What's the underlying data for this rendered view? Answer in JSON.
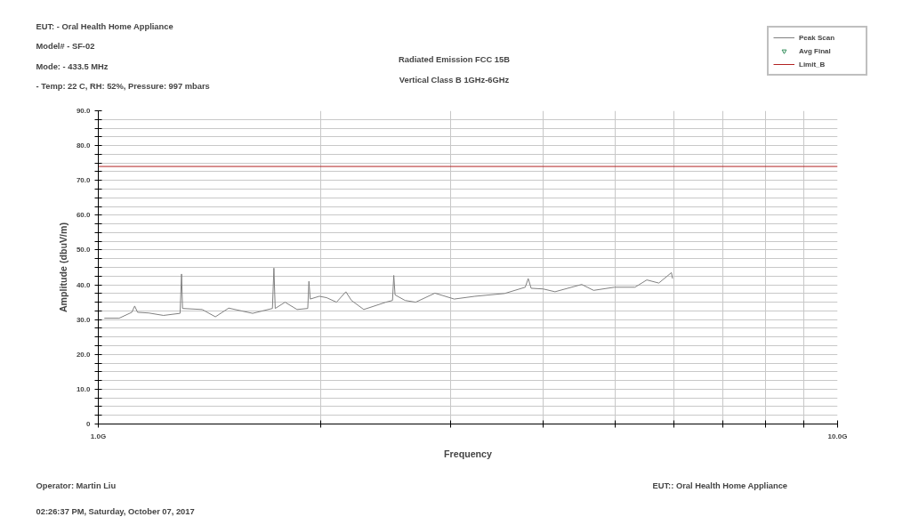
{
  "chart_data": {
    "type": "line",
    "title": "Radiated Emission FCC 15B",
    "subtitle": "Vertical Class B 1GHz-6GHz",
    "xlabel": "Frequency",
    "ylabel": "Amplitude (dbuV/m)",
    "annotations": [
      "EUT: - Oral Health Home Appliance",
      "Model# - SF-02",
      "Mode: - 433.5 MHz",
      " - Temp: 22 C, RH: 52%, Pressure: 997 mbars",
      "Operator: Martin Liu",
      "02:26:37 PM, Saturday, October 07, 2017",
      "EUT:: Oral Health Home Appliance"
    ],
    "log": "x",
    "grid": true,
    "legend": "top right",
    "xlim": [
      1,
      10
    ],
    "xticks": [
      {
        "value": 1,
        "label": "1.0G"
      },
      {
        "value": 2,
        "label": null
      },
      {
        "value": 3,
        "label": null
      },
      {
        "value": 4,
        "label": null
      },
      {
        "value": 5,
        "label": null
      },
      {
        "value": 6,
        "label": null
      },
      {
        "value": 7,
        "label": null
      },
      {
        "value": 8,
        "label": null
      },
      {
        "value": 9,
        "label": null
      },
      {
        "value": 10,
        "label": "10.0G"
      }
    ],
    "ylim": [
      0,
      90
    ],
    "yticks": [
      0,
      {
        "value": 2.5,
        "label": null
      },
      {
        "value": 5,
        "label": null
      },
      {
        "value": 7.5,
        "label": null
      },
      {
        "value": 10,
        "label": "10.0"
      },
      {
        "value": 12.5,
        "label": null
      },
      {
        "value": 15,
        "label": null
      },
      {
        "value": 17.5,
        "label": null
      },
      {
        "value": 20,
        "label": "20.0"
      },
      {
        "value": 22.5,
        "label": null
      },
      {
        "value": 25,
        "label": null
      },
      {
        "value": 27.5,
        "label": null
      },
      {
        "value": 30,
        "label": "30.0"
      },
      {
        "value": 32.5,
        "label": null
      },
      {
        "value": 35,
        "label": null
      },
      {
        "value": 37.5,
        "label": null
      },
      {
        "value": 40,
        "label": "40.0"
      },
      {
        "value": 42.5,
        "label": null
      },
      {
        "value": 45,
        "label": null
      },
      {
        "value": 47.5,
        "label": null
      },
      {
        "value": 50,
        "label": "50.0"
      },
      {
        "value": 52.5,
        "label": null
      },
      {
        "value": 55,
        "label": null
      },
      {
        "value": 57.5,
        "label": null
      },
      {
        "value": 60,
        "label": "60.0"
      },
      {
        "value": 62.5,
        "label": null
      },
      {
        "value": 65,
        "label": null
      },
      {
        "value": 67.5,
        "label": null
      },
      {
        "value": 70,
        "label": "70.0"
      },
      {
        "value": 72.5,
        "label": null
      },
      {
        "value": 75,
        "label": null
      },
      {
        "value": 77.5,
        "label": null
      },
      {
        "value": 80,
        "label": "80.0"
      },
      {
        "value": 82.5,
        "label": null
      },
      {
        "value": 85,
        "label": null
      },
      {
        "value": 87.5,
        "label": null
      },
      {
        "value": 90,
        "label": "90.0"
      }
    ],
    "series": [
      {
        "name": "Peak Scan",
        "color": "#808080",
        "x": [
          1.019,
          1.067,
          1.11,
          1.12,
          1.13,
          1.17,
          1.225,
          1.29,
          1.296,
          1.3,
          1.382,
          1.44,
          1.501,
          1.617,
          1.72,
          1.728,
          1.735,
          1.789,
          1.857,
          1.92,
          1.927,
          1.935,
          1.99,
          2.036,
          2.1,
          2.162,
          2.2,
          2.286,
          2.449,
          2.5,
          2.51,
          2.52,
          2.6,
          2.687,
          2.853,
          3.03,
          3.232,
          3.544,
          3.78,
          3.815,
          3.85,
          3.998,
          4.147,
          4.507,
          4.677,
          4.99,
          5.32,
          5.52,
          5.73,
          5.96,
          5.98
        ],
        "values": [
          30.4,
          30.4,
          32.1,
          33.9,
          32.1,
          31.9,
          31.2,
          31.8,
          43.1,
          33.2,
          32.9,
          30.8,
          33.3,
          31.8,
          33.2,
          44.8,
          33.2,
          35.0,
          32.9,
          33.2,
          41.0,
          35.9,
          36.7,
          36.3,
          35.0,
          38.0,
          35.5,
          32.9,
          35.0,
          35.5,
          42.7,
          37.1,
          35.5,
          35.0,
          37.6,
          35.9,
          36.7,
          37.5,
          39.3,
          41.8,
          39.0,
          38.8,
          38.0,
          40.1,
          38.4,
          39.3,
          39.3,
          41.4,
          40.5,
          43.5,
          41.8
        ]
      },
      {
        "name": "Avg Final",
        "type": "scatter",
        "marker": "triangle",
        "color": "#2e8b57"
      },
      {
        "name": "Limit_B",
        "color": "#b22222",
        "x": [
          1,
          10
        ],
        "values": [
          74,
          74
        ]
      }
    ]
  }
}
